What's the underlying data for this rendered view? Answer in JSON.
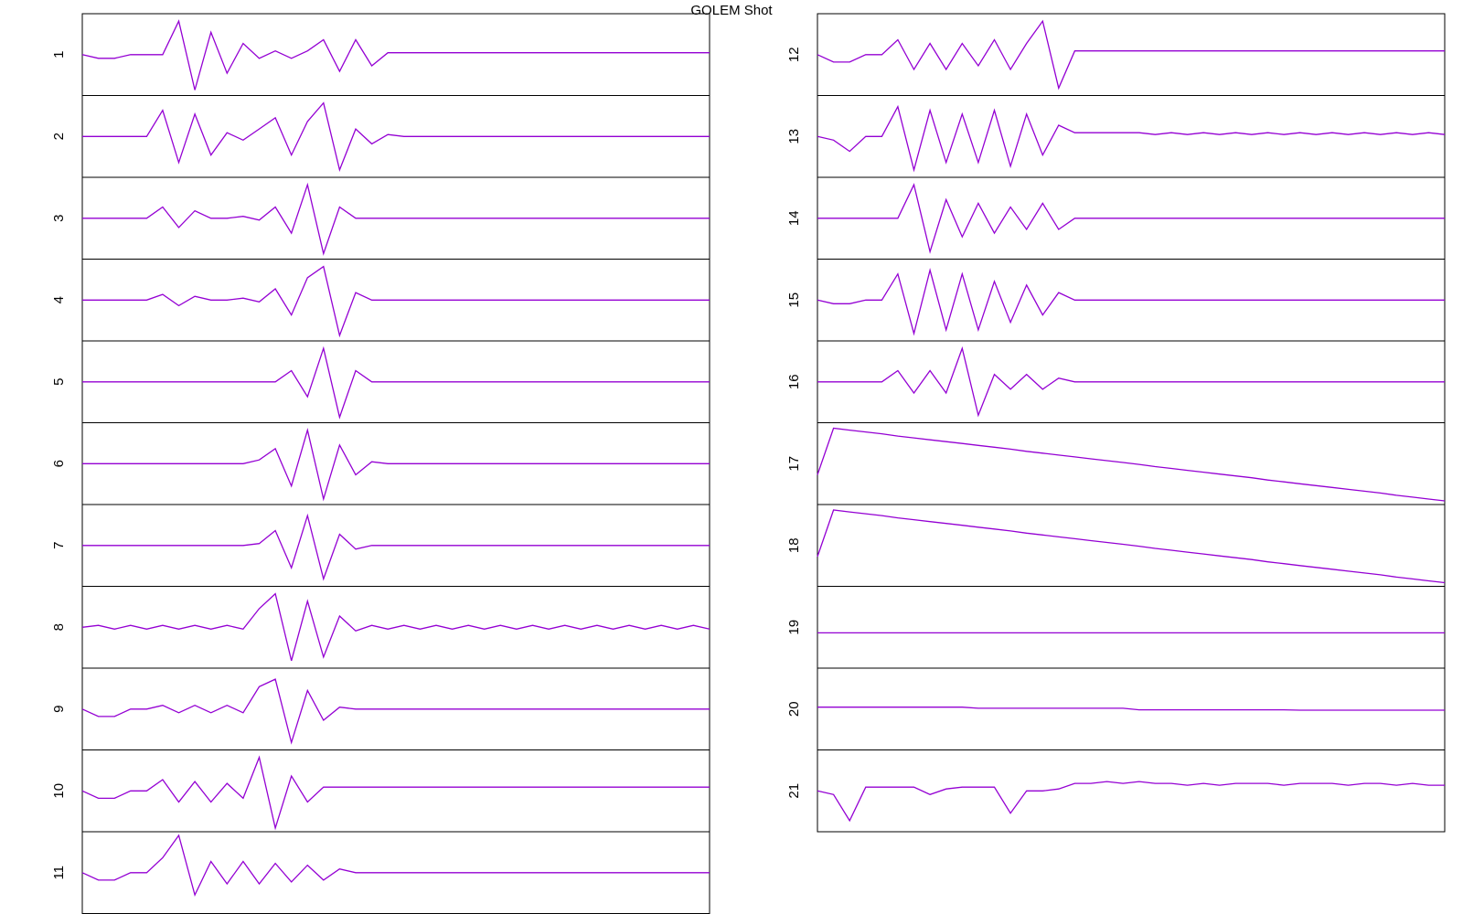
{
  "chart_data": {
    "type": "line",
    "title": "GOLEM Shot",
    "color": "#9400d3",
    "ylim": [
      -1,
      1
    ],
    "panels": [
      {
        "name": "1",
        "values": [
          0,
          -0.1,
          -0.1,
          0,
          0,
          0,
          0.9,
          -0.95,
          0.6,
          -0.5,
          0.3,
          -0.1,
          0.1,
          -0.1,
          0.1,
          0.4,
          -0.45,
          0.4,
          -0.3,
          0.05,
          0.05,
          0.05,
          0.05,
          0.05,
          0.05,
          0.05,
          0.05,
          0.05,
          0.05,
          0.05,
          0.05,
          0.05,
          0.05,
          0.05,
          0.05,
          0.05,
          0.05,
          0.05,
          0.05,
          0.05
        ]
      },
      {
        "name": "2",
        "values": [
          0,
          0,
          0,
          0,
          0,
          0.7,
          -0.7,
          0.6,
          -0.5,
          0.1,
          -0.1,
          0.2,
          0.5,
          -0.5,
          0.4,
          0.9,
          -0.9,
          0.2,
          -0.2,
          0.05,
          0,
          0,
          0,
          0,
          0,
          0,
          0,
          0,
          0,
          0,
          0,
          0,
          0,
          0,
          0,
          0,
          0,
          0,
          0,
          0
        ]
      },
      {
        "name": "3",
        "values": [
          0,
          0,
          0,
          0,
          0,
          0.3,
          -0.25,
          0.2,
          0,
          0,
          0.05,
          -0.05,
          0.3,
          -0.4,
          0.9,
          -0.95,
          0.3,
          0,
          0,
          0,
          0,
          0,
          0,
          0,
          0,
          0,
          0,
          0,
          0,
          0,
          0,
          0,
          0,
          0,
          0,
          0,
          0,
          0,
          0,
          0
        ]
      },
      {
        "name": "4",
        "values": [
          0,
          0,
          0,
          0,
          0,
          0.15,
          -0.15,
          0.1,
          0,
          0,
          0.05,
          -0.05,
          0.3,
          -0.4,
          0.6,
          0.9,
          -0.95,
          0.2,
          0,
          0,
          0,
          0,
          0,
          0,
          0,
          0,
          0,
          0,
          0,
          0,
          0,
          0,
          0,
          0,
          0,
          0,
          0,
          0,
          0,
          0
        ]
      },
      {
        "name": "5",
        "values": [
          0,
          0,
          0,
          0,
          0,
          0,
          0,
          0,
          0,
          0,
          0,
          0,
          0,
          0.3,
          -0.4,
          0.9,
          -0.95,
          0.3,
          0,
          0,
          0,
          0,
          0,
          0,
          0,
          0,
          0,
          0,
          0,
          0,
          0,
          0,
          0,
          0,
          0,
          0,
          0,
          0,
          0,
          0
        ]
      },
      {
        "name": "6",
        "values": [
          0,
          0,
          0,
          0,
          0,
          0,
          0,
          0,
          0,
          0,
          0,
          0.1,
          0.4,
          -0.6,
          0.9,
          -0.95,
          0.5,
          -0.3,
          0.05,
          0,
          0,
          0,
          0,
          0,
          0,
          0,
          0,
          0,
          0,
          0,
          0,
          0,
          0,
          0,
          0,
          0,
          0,
          0,
          0,
          0
        ]
      },
      {
        "name": "7",
        "values": [
          0,
          0,
          0,
          0,
          0,
          0,
          0,
          0,
          0,
          0,
          0,
          0.05,
          0.4,
          -0.6,
          0.8,
          -0.9,
          0.3,
          -0.1,
          0,
          0,
          0,
          0,
          0,
          0,
          0,
          0,
          0,
          0,
          0,
          0,
          0,
          0,
          0,
          0,
          0,
          0,
          0,
          0,
          0,
          0
        ]
      },
      {
        "name": "8",
        "values": [
          0,
          0.05,
          -0.05,
          0.05,
          -0.05,
          0.05,
          -0.05,
          0.05,
          -0.05,
          0.05,
          -0.05,
          0.5,
          0.9,
          -0.9,
          0.7,
          -0.8,
          0.3,
          -0.1,
          0.05,
          -0.05,
          0.05,
          -0.05,
          0.05,
          -0.05,
          0.05,
          -0.05,
          0.05,
          -0.05,
          0.05,
          -0.05,
          0.05,
          -0.05,
          0.05,
          -0.05,
          0.05,
          -0.05,
          0.05,
          -0.05,
          0.05,
          -0.05
        ]
      },
      {
        "name": "9",
        "values": [
          0,
          -0.2,
          -0.2,
          0,
          0,
          0.1,
          -0.1,
          0.1,
          -0.1,
          0.1,
          -0.1,
          0.6,
          0.8,
          -0.9,
          0.5,
          -0.3,
          0.05,
          0,
          0,
          0,
          0,
          0,
          0,
          0,
          0,
          0,
          0,
          0,
          0,
          0,
          0,
          0,
          0,
          0,
          0,
          0,
          0,
          0,
          0,
          0
        ]
      },
      {
        "name": "10",
        "values": [
          0,
          -0.2,
          -0.2,
          0,
          0,
          0.3,
          -0.3,
          0.25,
          -0.3,
          0.2,
          -0.2,
          0.9,
          -1,
          0.4,
          -0.3,
          0.1,
          0.1,
          0.1,
          0.1,
          0.1,
          0.1,
          0.1,
          0.1,
          0.1,
          0.1,
          0.1,
          0.1,
          0.1,
          0.1,
          0.1,
          0.1,
          0.1,
          0.1,
          0.1,
          0.1,
          0.1,
          0.1,
          0.1,
          0.1,
          0.1
        ]
      },
      {
        "name": "11",
        "values": [
          0,
          -0.2,
          -0.2,
          0,
          0,
          0.4,
          1,
          -0.6,
          0.3,
          -0.3,
          0.3,
          -0.3,
          0.25,
          -0.25,
          0.2,
          -0.2,
          0.1,
          0,
          0,
          0,
          0,
          0,
          0,
          0,
          0,
          0,
          0,
          0,
          0,
          0,
          0,
          0,
          0,
          0,
          0,
          0,
          0,
          0,
          0,
          0
        ]
      },
      {
        "name": "12",
        "values": [
          0,
          -0.2,
          -0.2,
          0,
          0,
          0.4,
          -0.4,
          0.3,
          -0.4,
          0.3,
          -0.3,
          0.4,
          -0.4,
          0.3,
          0.9,
          -0.9,
          0.1,
          0.1,
          0.1,
          0.1,
          0.1,
          0.1,
          0.1,
          0.1,
          0.1,
          0.1,
          0.1,
          0.1,
          0.1,
          0.1,
          0.1,
          0.1,
          0.1,
          0.1,
          0.1,
          0.1,
          0.1,
          0.1,
          0.1,
          0.1
        ]
      },
      {
        "name": "13",
        "values": [
          0,
          -0.1,
          -0.4,
          0,
          0,
          0.8,
          -0.9,
          0.7,
          -0.7,
          0.6,
          -0.7,
          0.7,
          -0.8,
          0.6,
          -0.5,
          0.3,
          0.1,
          0.1,
          0.1,
          0.1,
          0.1,
          0.05,
          0.1,
          0.05,
          0.1,
          0.05,
          0.1,
          0.05,
          0.1,
          0.05,
          0.1,
          0.05,
          0.1,
          0.05,
          0.1,
          0.05,
          0.1,
          0.05,
          0.1,
          0.05
        ]
      },
      {
        "name": "14",
        "values": [
          0,
          0,
          0,
          0,
          0,
          0,
          0.9,
          -0.9,
          0.5,
          -0.5,
          0.4,
          -0.4,
          0.3,
          -0.3,
          0.4,
          -0.3,
          0,
          0,
          0,
          0,
          0,
          0,
          0,
          0,
          0,
          0,
          0,
          0,
          0,
          0,
          0,
          0,
          0,
          0,
          0,
          0,
          0,
          0,
          0,
          0
        ]
      },
      {
        "name": "15",
        "values": [
          0,
          -0.1,
          -0.1,
          0,
          0,
          0.7,
          -0.9,
          0.8,
          -0.8,
          0.7,
          -0.8,
          0.5,
          -0.6,
          0.4,
          -0.4,
          0.2,
          0,
          0,
          0,
          0,
          0,
          0,
          0,
          0,
          0,
          0,
          0,
          0,
          0,
          0,
          0,
          0,
          0,
          0,
          0,
          0,
          0,
          0,
          0,
          0
        ]
      },
      {
        "name": "16",
        "values": [
          0,
          0,
          0,
          0,
          0,
          0.3,
          -0.3,
          0.3,
          -0.3,
          0.9,
          -0.9,
          0.2,
          -0.2,
          0.2,
          -0.2,
          0.1,
          0,
          0,
          0,
          0,
          0,
          0,
          0,
          0,
          0,
          0,
          0,
          0,
          0,
          0,
          0,
          0,
          0,
          0,
          0,
          0,
          0,
          0,
          0,
          0
        ]
      },
      {
        "name": "17",
        "values": [
          -0.3,
          0.95,
          0.9,
          0.85,
          0.8,
          0.74,
          0.69,
          0.64,
          0.59,
          0.54,
          0.49,
          0.44,
          0.39,
          0.33,
          0.28,
          0.23,
          0.18,
          0.13,
          0.08,
          0.03,
          -0.02,
          -0.08,
          -0.13,
          -0.18,
          -0.23,
          -0.28,
          -0.33,
          -0.38,
          -0.44,
          -0.49,
          -0.54,
          -0.59,
          -0.64,
          -0.69,
          -0.74,
          -0.79,
          -0.85,
          -0.9,
          -0.95,
          -1
        ]
      },
      {
        "name": "18",
        "values": [
          -0.3,
          0.95,
          0.9,
          0.85,
          0.8,
          0.74,
          0.69,
          0.64,
          0.59,
          0.54,
          0.49,
          0.44,
          0.39,
          0.33,
          0.28,
          0.23,
          0.18,
          0.13,
          0.08,
          0.03,
          -0.02,
          -0.08,
          -0.13,
          -0.18,
          -0.23,
          -0.28,
          -0.33,
          -0.38,
          -0.44,
          -0.49,
          -0.54,
          -0.59,
          -0.64,
          -0.69,
          -0.74,
          -0.79,
          -0.85,
          -0.9,
          -0.95,
          -1
        ]
      },
      {
        "name": "19",
        "values": [
          -0.15,
          -0.15,
          -0.15,
          -0.15,
          -0.15,
          -0.15,
          -0.15,
          -0.15,
          -0.15,
          -0.15,
          -0.15,
          -0.15,
          -0.15,
          -0.15,
          -0.15,
          -0.15,
          -0.15,
          -0.15,
          -0.15,
          -0.15,
          -0.15,
          -0.15,
          -0.15,
          -0.15,
          -0.15,
          -0.15,
          -0.15,
          -0.15,
          -0.15,
          -0.15,
          -0.15,
          -0.15,
          -0.15,
          -0.15,
          -0.15,
          -0.15,
          -0.15,
          -0.15,
          -0.15,
          -0.15
        ]
      },
      {
        "name": "20",
        "values": [
          0.05,
          0.05,
          0.05,
          0.05,
          0.05,
          0.05,
          0.05,
          0.05,
          0.05,
          0.05,
          0.02,
          0.02,
          0.02,
          0.02,
          0.02,
          0.02,
          0.02,
          0.02,
          0.02,
          0.02,
          -0.02,
          -0.02,
          -0.02,
          -0.02,
          -0.02,
          -0.02,
          -0.02,
          -0.02,
          -0.02,
          -0.02,
          -0.03,
          -0.03,
          -0.03,
          -0.03,
          -0.03,
          -0.03,
          -0.03,
          -0.03,
          -0.03,
          -0.03
        ]
      },
      {
        "name": "21",
        "values": [
          0,
          -0.1,
          -0.8,
          0.1,
          0.1,
          0.1,
          0.1,
          -0.1,
          0.05,
          0.1,
          0.1,
          0.1,
          -0.6,
          0,
          0,
          0.05,
          0.2,
          0.2,
          0.25,
          0.2,
          0.25,
          0.2,
          0.2,
          0.15,
          0.2,
          0.15,
          0.2,
          0.2,
          0.2,
          0.15,
          0.2,
          0.2,
          0.2,
          0.15,
          0.2,
          0.2,
          0.15,
          0.2,
          0.15,
          0.15
        ]
      }
    ]
  }
}
